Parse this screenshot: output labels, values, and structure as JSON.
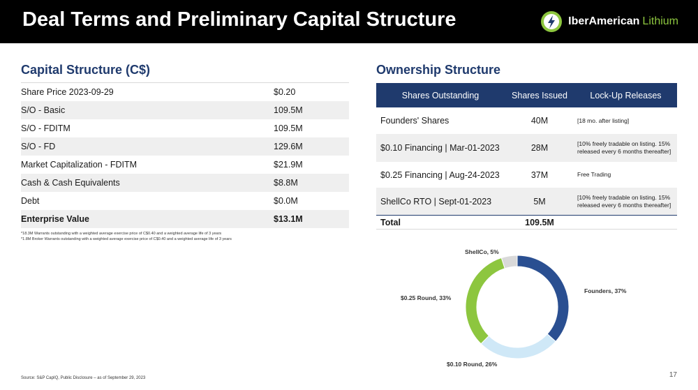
{
  "header": {
    "title": "Deal Terms and Preliminary Capital Structure",
    "logo_word1": "IberAmerican",
    "logo_word2": "Lithium"
  },
  "capital": {
    "title": "Capital Structure (C$)",
    "rows": [
      {
        "label": "Share Price 2023-09-29",
        "value": "$0.20"
      },
      {
        "label": "S/O - Basic",
        "value": "109.5M"
      },
      {
        "label": "S/O - FDITM",
        "value": "109.5M"
      },
      {
        "label": "S/O - FD",
        "value": "129.6M"
      },
      {
        "label": "Market Capitalization - FDITM",
        "value": "$21.9M"
      },
      {
        "label": "Cash & Cash Equivalents",
        "value": "$8.8M"
      },
      {
        "label": "Debt",
        "value": "$0.0M"
      },
      {
        "label": "Enterprise Value",
        "value": "$13.1M"
      }
    ],
    "footnotes": [
      "*18.3M Warrants outstanding with a weighted average exercise price of C$0.40 and a weighted average life of 3 years",
      "*1.8M Broker Warrants outstanding with a weighted average exercise price of C$0.40 and a weighted average life of 3 years"
    ]
  },
  "ownership": {
    "title": "Ownership Structure",
    "columns": [
      "Shares Outstanding",
      "Shares Issued",
      "Lock-Up Releases"
    ],
    "rows": [
      {
        "name": "Founders' Shares",
        "issued": "40M",
        "lockup": "[18 mo. after listing]"
      },
      {
        "name": "$0.10 Financing | Mar-01-2023",
        "issued": "28M",
        "lockup": "[10% freely tradable on listing. 15% released every 6 months thereafter]"
      },
      {
        "name": "$0.25 Financing | Aug-24-2023",
        "issued": "37M",
        "lockup": "Free Trading"
      },
      {
        "name": "ShellCo RTO | Sept-01-2023",
        "issued": "5M",
        "lockup": "[10% freely tradable on listing. 15% released every 6 months thereafter]"
      }
    ],
    "total": {
      "name": "Total",
      "issued": "109.5M"
    }
  },
  "chart_data": {
    "type": "pie",
    "donut": true,
    "categories": [
      "Founders",
      "$0.10 Round",
      "$0.25 Round",
      "ShellCo"
    ],
    "values": [
      37,
      26,
      33,
      5
    ],
    "unit": "%",
    "labels": [
      "Founders, 37%",
      "$0.10 Round, 26%",
      "$0.25 Round, 33%",
      "ShellCo, 5%"
    ],
    "colors": [
      "#2a4f91",
      "#cfe8f7",
      "#8dc63f",
      "#d9d9d9"
    ]
  },
  "footer": {
    "source": "Source: S&P CapIQ, Public Disclosure – as of September 29, 2023",
    "page": "17"
  }
}
